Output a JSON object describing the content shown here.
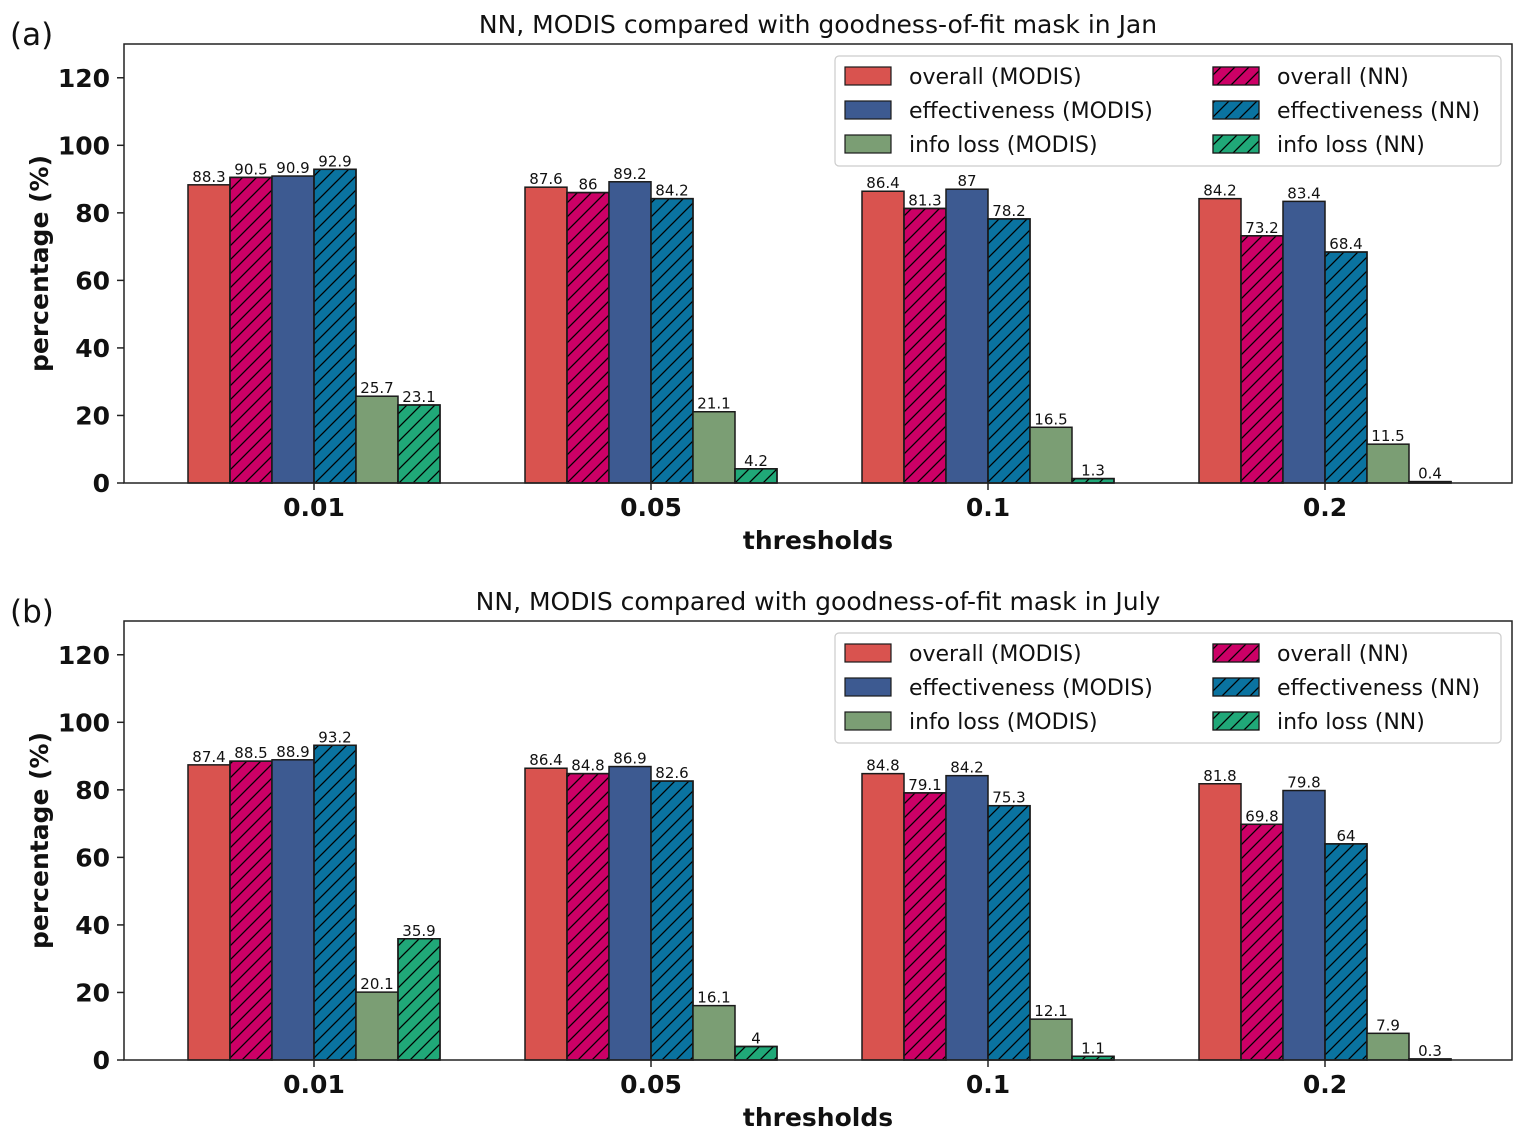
{
  "chart_data": [
    {
      "panel_label": "(a)",
      "type": "bar",
      "title": "NN, MODIS compared with goodness-of-fit mask in Jan",
      "xlabel": "thresholds",
      "ylabel": "percentage (%)",
      "ylim": [
        0,
        130
      ],
      "yticks": [
        0,
        20,
        40,
        60,
        80,
        100,
        120
      ],
      "categories": [
        "0.01",
        "0.05",
        "0.1",
        "0.2"
      ],
      "legend_placement": "upper-right",
      "series": [
        {
          "name": "overall (MODIS)",
          "color": "#d9534f",
          "hatch": false,
          "values": [
            88.3,
            87.6,
            86.4,
            84.2
          ]
        },
        {
          "name": "overall (NN)",
          "color": "#cc0066",
          "hatch": true,
          "values": [
            90.5,
            86.0,
            81.3,
            73.2
          ]
        },
        {
          "name": "effectiveness (MODIS)",
          "color": "#3d5a91",
          "hatch": false,
          "values": [
            90.9,
            89.2,
            87.0,
            83.4
          ]
        },
        {
          "name": "effectiveness (NN)",
          "color": "#0a73a0",
          "hatch": true,
          "values": [
            92.9,
            84.2,
            78.2,
            68.4
          ]
        },
        {
          "name": "info loss (MODIS)",
          "color": "#7b9e74",
          "hatch": false,
          "values": [
            25.7,
            21.1,
            16.5,
            11.5
          ]
        },
        {
          "name": "info loss (NN)",
          "color": "#20a878",
          "hatch": true,
          "values": [
            23.1,
            4.2,
            1.3,
            0.4
          ]
        }
      ]
    },
    {
      "panel_label": "(b)",
      "type": "bar",
      "title": "NN, MODIS compared with goodness-of-fit mask in July",
      "xlabel": "thresholds",
      "ylabel": "percentage (%)",
      "ylim": [
        0,
        130
      ],
      "yticks": [
        0,
        20,
        40,
        60,
        80,
        100,
        120
      ],
      "categories": [
        "0.01",
        "0.05",
        "0.1",
        "0.2"
      ],
      "legend_placement": "upper-right",
      "series": [
        {
          "name": "overall (MODIS)",
          "color": "#d9534f",
          "hatch": false,
          "values": [
            87.4,
            86.4,
            84.8,
            81.8
          ]
        },
        {
          "name": "overall (NN)",
          "color": "#cc0066",
          "hatch": true,
          "values": [
            88.5,
            84.8,
            79.1,
            69.8
          ]
        },
        {
          "name": "effectiveness (MODIS)",
          "color": "#3d5a91",
          "hatch": false,
          "values": [
            88.9,
            86.9,
            84.2,
            79.8
          ]
        },
        {
          "name": "effectiveness (NN)",
          "color": "#0a73a0",
          "hatch": true,
          "values": [
            93.2,
            82.6,
            75.3,
            64.0
          ]
        },
        {
          "name": "info loss (MODIS)",
          "color": "#7b9e74",
          "hatch": false,
          "values": [
            20.1,
            16.1,
            12.1,
            7.9
          ]
        },
        {
          "name": "info loss (NN)",
          "color": "#20a878",
          "hatch": true,
          "values": [
            35.9,
            4.0,
            1.1,
            0.3
          ]
        }
      ]
    }
  ]
}
